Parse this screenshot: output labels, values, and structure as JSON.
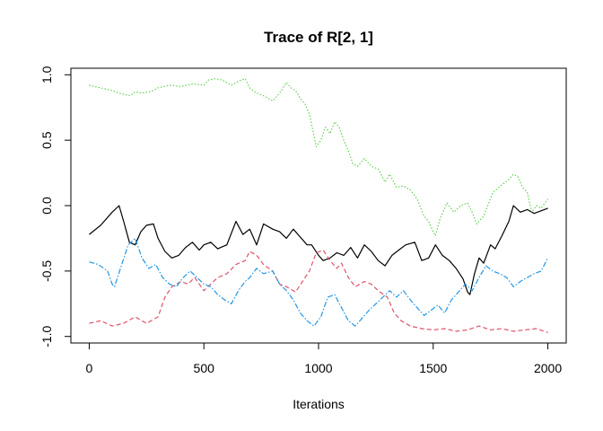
{
  "chart_data": {
    "type": "line",
    "title": "Trace of R[2, 1]",
    "xlabel": "Iterations",
    "ylabel": "",
    "xlim": [
      -80,
      2080
    ],
    "ylim": [
      -1.05,
      1.05
    ],
    "xticks": [
      0,
      500,
      1000,
      1500,
      2000
    ],
    "xtick_labels": [
      "0",
      "500",
      "1000",
      "1500",
      "2000"
    ],
    "yticks": [
      -1.0,
      -0.5,
      0.0,
      0.5,
      1.0
    ],
    "ytick_labels": [
      "-1.0",
      "-0.5",
      "0.0",
      "0.5",
      "1.0"
    ],
    "grid": false,
    "legend": "none",
    "series": [
      {
        "color": "#000000",
        "dash": "solid",
        "x": [
          0,
          50,
          100,
          130,
          150,
          175,
          200,
          225,
          250,
          280,
          300,
          330,
          360,
          390,
          420,
          450,
          480,
          500,
          530,
          560,
          600,
          640,
          670,
          700,
          730,
          760,
          800,
          830,
          860,
          890,
          920,
          950,
          970,
          1000,
          1020,
          1050,
          1080,
          1110,
          1140,
          1170,
          1200,
          1230,
          1260,
          1290,
          1320,
          1350,
          1380,
          1420,
          1450,
          1480,
          1510,
          1540,
          1570,
          1600,
          1630,
          1650,
          1660,
          1680,
          1700,
          1720,
          1750,
          1770,
          1800,
          1830,
          1850,
          1880,
          1910,
          1940,
          1970,
          2000
        ],
        "y": [
          -0.22,
          -0.15,
          -0.05,
          0.0,
          -0.12,
          -0.28,
          -0.3,
          -0.2,
          -0.15,
          -0.14,
          -0.25,
          -0.35,
          -0.4,
          -0.38,
          -0.32,
          -0.28,
          -0.34,
          -0.3,
          -0.28,
          -0.33,
          -0.3,
          -0.12,
          -0.22,
          -0.18,
          -0.3,
          -0.14,
          -0.18,
          -0.2,
          -0.25,
          -0.18,
          -0.24,
          -0.3,
          -0.3,
          -0.38,
          -0.42,
          -0.4,
          -0.36,
          -0.38,
          -0.32,
          -0.4,
          -0.3,
          -0.35,
          -0.42,
          -0.46,
          -0.38,
          -0.34,
          -0.3,
          -0.28,
          -0.42,
          -0.4,
          -0.3,
          -0.38,
          -0.42,
          -0.48,
          -0.56,
          -0.66,
          -0.68,
          -0.52,
          -0.4,
          -0.44,
          -0.3,
          -0.33,
          -0.23,
          -0.12,
          0.0,
          -0.05,
          -0.03,
          -0.06,
          -0.04,
          -0.02
        ]
      },
      {
        "color": "#DF536B",
        "dash": "dashed",
        "x": [
          0,
          50,
          100,
          150,
          200,
          250,
          300,
          330,
          360,
          400,
          430,
          460,
          500,
          530,
          560,
          600,
          640,
          680,
          700,
          730,
          760,
          800,
          830,
          860,
          900,
          930,
          960,
          990,
          1020,
          1050,
          1080,
          1100,
          1130,
          1160,
          1200,
          1230,
          1260,
          1300,
          1330,
          1360,
          1400,
          1450,
          1500,
          1550,
          1600,
          1650,
          1700,
          1750,
          1800,
          1850,
          1900,
          1950,
          2000
        ],
        "y": [
          -0.9,
          -0.88,
          -0.92,
          -0.9,
          -0.85,
          -0.9,
          -0.85,
          -0.7,
          -0.62,
          -0.58,
          -0.6,
          -0.55,
          -0.65,
          -0.6,
          -0.55,
          -0.52,
          -0.45,
          -0.42,
          -0.35,
          -0.38,
          -0.45,
          -0.5,
          -0.6,
          -0.62,
          -0.66,
          -0.58,
          -0.5,
          -0.36,
          -0.34,
          -0.42,
          -0.48,
          -0.44,
          -0.55,
          -0.62,
          -0.58,
          -0.6,
          -0.65,
          -0.7,
          -0.82,
          -0.88,
          -0.92,
          -0.94,
          -0.95,
          -0.94,
          -0.96,
          -0.95,
          -0.92,
          -0.95,
          -0.94,
          -0.96,
          -0.95,
          -0.94,
          -0.97
        ]
      },
      {
        "color": "#61D04F",
        "dash": "dotted",
        "x": [
          0,
          50,
          100,
          130,
          150,
          180,
          200,
          230,
          260,
          280,
          300,
          350,
          400,
          450,
          500,
          520,
          550,
          580,
          600,
          620,
          650,
          680,
          700,
          730,
          760,
          800,
          830,
          860,
          880,
          900,
          920,
          940,
          960,
          970,
          990,
          1010,
          1030,
          1050,
          1070,
          1090,
          1110,
          1130,
          1150,
          1170,
          1200,
          1230,
          1260,
          1290,
          1310,
          1340,
          1370,
          1400,
          1430,
          1460,
          1480,
          1500,
          1510,
          1530,
          1560,
          1590,
          1620,
          1650,
          1670,
          1690,
          1720,
          1760,
          1800,
          1830,
          1850,
          1870,
          1890,
          1910,
          1930,
          1950,
          1970,
          2000
        ],
        "y": [
          0.92,
          0.9,
          0.88,
          0.86,
          0.85,
          0.84,
          0.87,
          0.86,
          0.87,
          0.88,
          0.9,
          0.92,
          0.91,
          0.93,
          0.92,
          0.96,
          0.97,
          0.96,
          0.94,
          0.92,
          0.95,
          0.97,
          0.9,
          0.86,
          0.84,
          0.8,
          0.86,
          0.94,
          0.9,
          0.88,
          0.82,
          0.78,
          0.7,
          0.62,
          0.45,
          0.5,
          0.6,
          0.55,
          0.64,
          0.6,
          0.5,
          0.42,
          0.32,
          0.3,
          0.36,
          0.3,
          0.28,
          0.18,
          0.24,
          0.14,
          0.15,
          0.12,
          0.05,
          -0.08,
          -0.12,
          -0.2,
          -0.23,
          -0.1,
          0.02,
          -0.05,
          0.0,
          0.02,
          -0.05,
          -0.14,
          -0.08,
          0.1,
          0.16,
          0.2,
          0.24,
          0.22,
          0.14,
          0.1,
          -0.05,
          0.0,
          -0.02,
          0.05
        ]
      },
      {
        "color": "#2297E6",
        "dash": "dashdot",
        "x": [
          0,
          40,
          80,
          100,
          110,
          140,
          170,
          200,
          230,
          260,
          290,
          320,
          350,
          380,
          410,
          440,
          470,
          500,
          530,
          560,
          590,
          620,
          650,
          680,
          700,
          730,
          760,
          800,
          830,
          860,
          890,
          920,
          950,
          980,
          1010,
          1040,
          1070,
          1100,
          1130,
          1160,
          1190,
          1220,
          1250,
          1280,
          1310,
          1340,
          1370,
          1400,
          1430,
          1460,
          1490,
          1520,
          1550,
          1580,
          1610,
          1640,
          1670,
          1700,
          1730,
          1760,
          1790,
          1820,
          1850,
          1880,
          1910,
          1940,
          1970,
          2000
        ],
        "y": [
          -0.43,
          -0.45,
          -0.5,
          -0.6,
          -0.62,
          -0.46,
          -0.3,
          -0.25,
          -0.4,
          -0.48,
          -0.45,
          -0.55,
          -0.6,
          -0.62,
          -0.55,
          -0.5,
          -0.55,
          -0.6,
          -0.62,
          -0.68,
          -0.72,
          -0.75,
          -0.65,
          -0.58,
          -0.55,
          -0.48,
          -0.52,
          -0.5,
          -0.6,
          -0.65,
          -0.72,
          -0.82,
          -0.88,
          -0.92,
          -0.85,
          -0.7,
          -0.68,
          -0.78,
          -0.88,
          -0.92,
          -0.86,
          -0.8,
          -0.75,
          -0.7,
          -0.65,
          -0.7,
          -0.65,
          -0.72,
          -0.78,
          -0.84,
          -0.8,
          -0.76,
          -0.82,
          -0.72,
          -0.66,
          -0.6,
          -0.65,
          -0.55,
          -0.46,
          -0.5,
          -0.52,
          -0.55,
          -0.62,
          -0.58,
          -0.55,
          -0.52,
          -0.5,
          -0.4
        ]
      }
    ]
  }
}
